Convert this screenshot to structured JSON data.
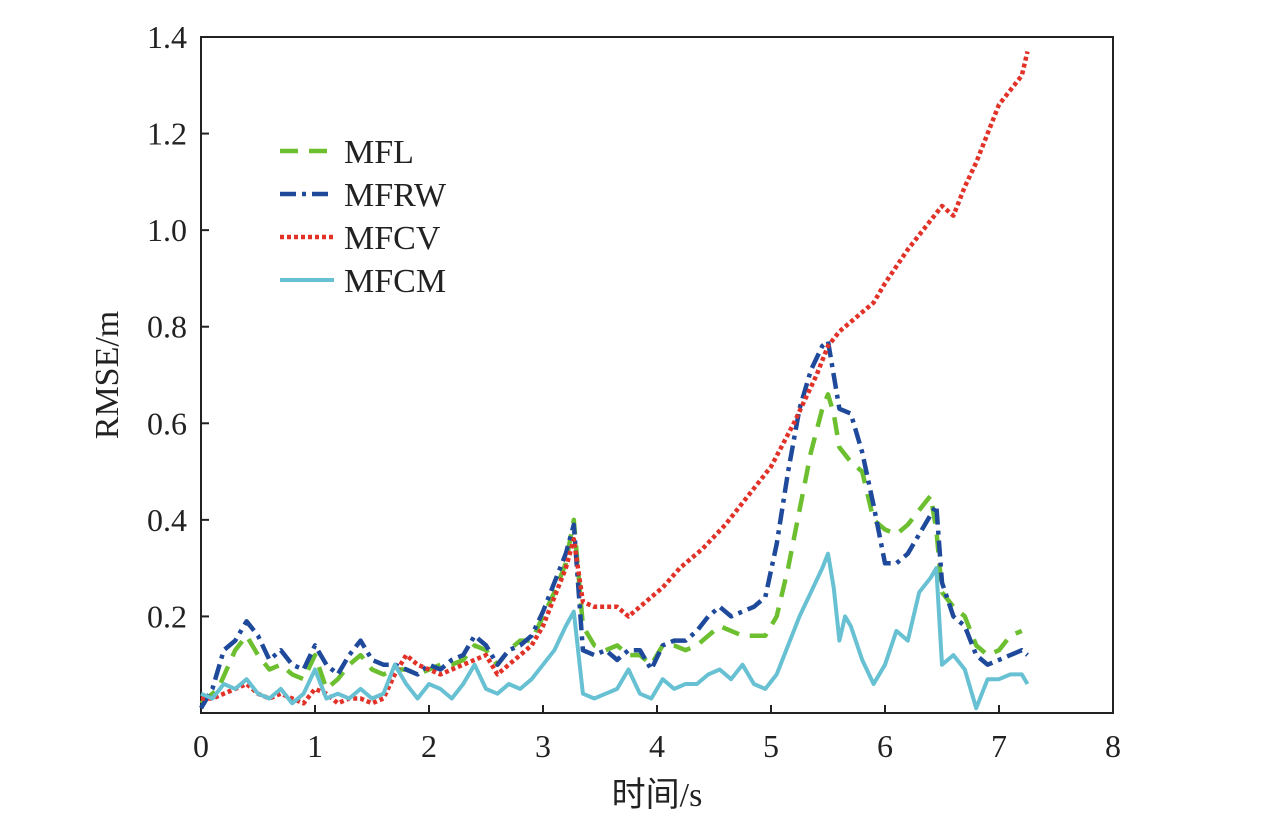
{
  "chart_data": {
    "type": "line",
    "title": "",
    "xlabel": "时间/s",
    "ylabel": "RMSE/m",
    "xlim": [
      0,
      8
    ],
    "ylim": [
      0,
      1.4
    ],
    "x_ticks": [
      "0",
      "1",
      "2",
      "3",
      "4",
      "5",
      "6",
      "7",
      "8"
    ],
    "y_ticks": [
      "0.2",
      "0.4",
      "0.6",
      "0.8",
      "1.0",
      "1.2",
      "1.4"
    ],
    "grid": false,
    "legend_position": "upper-left",
    "colors": {
      "MFL": "#6cbf2f",
      "MFRW": "#1f4a9c",
      "MFCV": "#e23228",
      "MFCM": "#67c1d3"
    },
    "series": [
      {
        "name": "MFL",
        "x": [
          0.0,
          0.15,
          0.3,
          0.4,
          0.5,
          0.6,
          0.7,
          0.8,
          0.9,
          1.0,
          1.1,
          1.2,
          1.3,
          1.4,
          1.5,
          1.6,
          1.7,
          1.8,
          1.9,
          2.0,
          2.1,
          2.2,
          2.3,
          2.4,
          2.5,
          2.6,
          2.7,
          2.8,
          2.9,
          3.0,
          3.1,
          3.2,
          3.27,
          3.35,
          3.45,
          3.55,
          3.65,
          3.75,
          3.85,
          3.95,
          4.05,
          4.15,
          4.25,
          4.35,
          4.45,
          4.55,
          4.65,
          4.75,
          4.85,
          4.95,
          5.05,
          5.15,
          5.25,
          5.35,
          5.45,
          5.5,
          5.55,
          5.6,
          5.7,
          5.8,
          5.9,
          6.0,
          6.1,
          6.2,
          6.3,
          6.4,
          6.45,
          6.5,
          6.6,
          6.7,
          6.8,
          6.9,
          7.0,
          7.1,
          7.2
        ],
        "values": [
          0.02,
          0.05,
          0.13,
          0.16,
          0.12,
          0.09,
          0.1,
          0.08,
          0.07,
          0.12,
          0.05,
          0.07,
          0.1,
          0.12,
          0.09,
          0.08,
          0.09,
          0.09,
          0.08,
          0.09,
          0.1,
          0.1,
          0.11,
          0.14,
          0.13,
          0.1,
          0.13,
          0.15,
          0.15,
          0.2,
          0.25,
          0.31,
          0.4,
          0.18,
          0.14,
          0.13,
          0.14,
          0.12,
          0.12,
          0.1,
          0.14,
          0.14,
          0.13,
          0.14,
          0.16,
          0.18,
          0.17,
          0.16,
          0.16,
          0.16,
          0.2,
          0.3,
          0.42,
          0.54,
          0.63,
          0.66,
          0.62,
          0.55,
          0.52,
          0.5,
          0.4,
          0.38,
          0.37,
          0.39,
          0.42,
          0.45,
          0.38,
          0.25,
          0.22,
          0.2,
          0.14,
          0.12,
          0.13,
          0.16,
          0.17
        ]
      },
      {
        "name": "MFRW",
        "x": [
          0.0,
          0.1,
          0.2,
          0.3,
          0.4,
          0.5,
          0.6,
          0.7,
          0.8,
          0.9,
          1.0,
          1.1,
          1.2,
          1.3,
          1.4,
          1.5,
          1.6,
          1.7,
          1.8,
          1.9,
          2.0,
          2.1,
          2.2,
          2.3,
          2.4,
          2.5,
          2.6,
          2.7,
          2.8,
          2.9,
          3.0,
          3.1,
          3.2,
          3.27,
          3.35,
          3.45,
          3.55,
          3.65,
          3.75,
          3.85,
          3.95,
          4.05,
          4.15,
          4.25,
          4.35,
          4.45,
          4.55,
          4.65,
          4.75,
          4.85,
          4.95,
          5.05,
          5.15,
          5.25,
          5.35,
          5.45,
          5.5,
          5.55,
          5.6,
          5.7,
          5.8,
          5.9,
          6.0,
          6.1,
          6.2,
          6.3,
          6.4,
          6.45,
          6.5,
          6.6,
          6.7,
          6.8,
          6.9,
          7.0,
          7.1,
          7.2,
          7.25
        ],
        "values": [
          0.01,
          0.05,
          0.13,
          0.15,
          0.19,
          0.16,
          0.11,
          0.13,
          0.1,
          0.09,
          0.14,
          0.1,
          0.08,
          0.12,
          0.15,
          0.11,
          0.1,
          0.1,
          0.09,
          0.08,
          0.1,
          0.09,
          0.11,
          0.12,
          0.16,
          0.14,
          0.1,
          0.13,
          0.14,
          0.16,
          0.21,
          0.27,
          0.33,
          0.39,
          0.13,
          0.12,
          0.13,
          0.11,
          0.13,
          0.13,
          0.09,
          0.14,
          0.15,
          0.15,
          0.17,
          0.2,
          0.22,
          0.2,
          0.21,
          0.22,
          0.24,
          0.35,
          0.5,
          0.63,
          0.71,
          0.76,
          0.77,
          0.7,
          0.63,
          0.62,
          0.54,
          0.43,
          0.31,
          0.31,
          0.33,
          0.37,
          0.41,
          0.43,
          0.27,
          0.2,
          0.18,
          0.12,
          0.1,
          0.11,
          0.12,
          0.13,
          0.12
        ]
      },
      {
        "name": "MFCV",
        "x": [
          0.0,
          0.1,
          0.2,
          0.3,
          0.4,
          0.5,
          0.6,
          0.7,
          0.8,
          0.9,
          1.0,
          1.1,
          1.2,
          1.3,
          1.4,
          1.5,
          1.6,
          1.7,
          1.8,
          1.9,
          2.0,
          2.1,
          2.2,
          2.3,
          2.4,
          2.5,
          2.6,
          2.7,
          2.8,
          2.9,
          3.0,
          3.1,
          3.2,
          3.27,
          3.35,
          3.45,
          3.55,
          3.65,
          3.75,
          3.85,
          3.95,
          4.05,
          4.2,
          4.4,
          4.6,
          4.8,
          5.0,
          5.2,
          5.4,
          5.5,
          5.6,
          5.7,
          5.8,
          5.9,
          6.0,
          6.2,
          6.4,
          6.5,
          6.6,
          6.7,
          6.8,
          6.9,
          7.0,
          7.1,
          7.2,
          7.25
        ],
        "values": [
          0.03,
          0.03,
          0.04,
          0.05,
          0.06,
          0.04,
          0.03,
          0.04,
          0.03,
          0.02,
          0.05,
          0.04,
          0.02,
          0.03,
          0.03,
          0.02,
          0.03,
          0.08,
          0.12,
          0.1,
          0.09,
          0.08,
          0.09,
          0.1,
          0.11,
          0.12,
          0.08,
          0.1,
          0.12,
          0.14,
          0.18,
          0.24,
          0.3,
          0.36,
          0.23,
          0.22,
          0.22,
          0.22,
          0.2,
          0.22,
          0.24,
          0.26,
          0.3,
          0.34,
          0.39,
          0.45,
          0.51,
          0.6,
          0.7,
          0.76,
          0.79,
          0.81,
          0.83,
          0.85,
          0.89,
          0.96,
          1.02,
          1.05,
          1.03,
          1.09,
          1.14,
          1.2,
          1.26,
          1.29,
          1.32,
          1.37
        ]
      },
      {
        "name": "MFCM",
        "x": [
          0.0,
          0.1,
          0.2,
          0.3,
          0.4,
          0.5,
          0.6,
          0.7,
          0.8,
          0.9,
          1.0,
          1.1,
          1.2,
          1.3,
          1.4,
          1.5,
          1.6,
          1.7,
          1.8,
          1.9,
          2.0,
          2.1,
          2.2,
          2.3,
          2.4,
          2.5,
          2.6,
          2.7,
          2.8,
          2.9,
          3.0,
          3.1,
          3.2,
          3.27,
          3.35,
          3.45,
          3.55,
          3.65,
          3.75,
          3.85,
          3.95,
          4.05,
          4.15,
          4.25,
          4.35,
          4.45,
          4.55,
          4.65,
          4.75,
          4.85,
          4.95,
          5.05,
          5.15,
          5.25,
          5.35,
          5.45,
          5.5,
          5.55,
          5.6,
          5.65,
          5.7,
          5.8,
          5.9,
          6.0,
          6.1,
          6.2,
          6.3,
          6.4,
          6.45,
          6.5,
          6.6,
          6.7,
          6.8,
          6.9,
          7.0,
          7.1,
          7.2,
          7.25
        ],
        "values": [
          0.04,
          0.03,
          0.06,
          0.05,
          0.07,
          0.04,
          0.03,
          0.05,
          0.02,
          0.04,
          0.09,
          0.03,
          0.04,
          0.03,
          0.05,
          0.03,
          0.04,
          0.1,
          0.06,
          0.03,
          0.06,
          0.05,
          0.03,
          0.06,
          0.1,
          0.05,
          0.04,
          0.06,
          0.05,
          0.07,
          0.1,
          0.13,
          0.18,
          0.21,
          0.04,
          0.03,
          0.04,
          0.05,
          0.09,
          0.04,
          0.03,
          0.07,
          0.05,
          0.06,
          0.06,
          0.08,
          0.09,
          0.07,
          0.1,
          0.06,
          0.05,
          0.08,
          0.14,
          0.2,
          0.25,
          0.3,
          0.33,
          0.26,
          0.15,
          0.2,
          0.18,
          0.11,
          0.06,
          0.1,
          0.17,
          0.15,
          0.25,
          0.28,
          0.3,
          0.1,
          0.12,
          0.09,
          0.01,
          0.07,
          0.07,
          0.08,
          0.08,
          0.06
        ]
      }
    ]
  }
}
